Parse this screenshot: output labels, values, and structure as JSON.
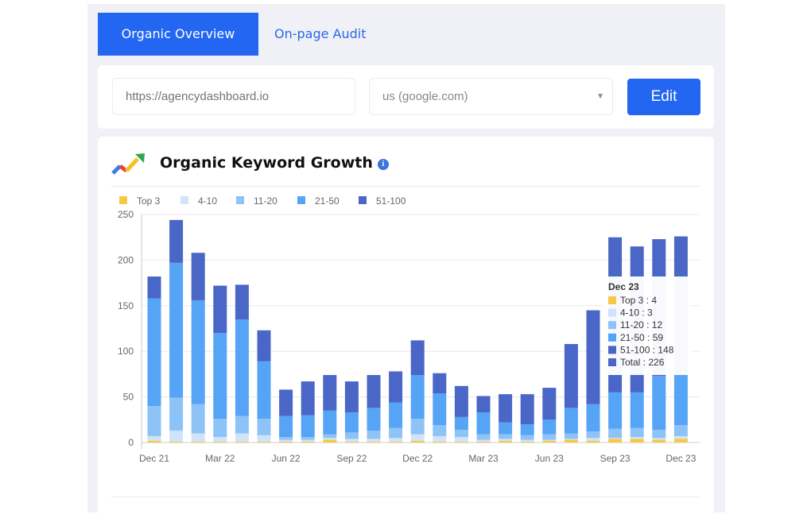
{
  "tabs": [
    {
      "label": "Organic Overview",
      "active": true
    },
    {
      "label": "On-page Audit",
      "active": false
    }
  ],
  "form": {
    "url_placeholder": "https://agencydashboard.io",
    "location": "us (google.com)",
    "edit_label": "Edit"
  },
  "widget": {
    "title": "Organic Keyword Growth",
    "info_icon": "i"
  },
  "colors": {
    "Top 3": "#f7c842",
    "4-10": "#cfe3fb",
    "11-20": "#8ec3f7",
    "21-50": "#55a4f5",
    "51-100": "#4a66c6"
  },
  "chart_data": {
    "type": "bar",
    "stacked": true,
    "title": "Organic Keyword Growth",
    "categories": [
      "Dec 21",
      "Jan 22",
      "Feb 22",
      "Mar 22",
      "Apr 22",
      "May 22",
      "Jun 22",
      "Jul 22",
      "Aug 22",
      "Sep 22",
      "Oct 22",
      "Nov 22",
      "Dec 22",
      "Jan 23",
      "Feb 23",
      "Mar 23",
      "Apr 23",
      "May 23",
      "Jun 23",
      "Jul 23",
      "Aug 23",
      "Sep 23",
      "Oct 23",
      "Nov 23",
      "Dec 23"
    ],
    "xtick_labels": [
      "Dec 21",
      "Mar 22",
      "Jun 22",
      "Sep 22",
      "Dec 22",
      "Mar 23",
      "Jun 23",
      "Sep 23",
      "Dec 23"
    ],
    "yticks": [
      "0",
      "50",
      "100",
      "150",
      "200",
      "250"
    ],
    "ylim": [
      0,
      250
    ],
    "legend_position": "top-left",
    "series": [
      {
        "name": "Top 3",
        "values": [
          2,
          1,
          1,
          1,
          1,
          1,
          1,
          1,
          3,
          1,
          1,
          1,
          2,
          1,
          1,
          1,
          2,
          1,
          2,
          3,
          2,
          4,
          4,
          3,
          4
        ]
      },
      {
        "name": "4-10",
        "values": [
          5,
          12,
          9,
          5,
          9,
          7,
          2,
          2,
          2,
          3,
          3,
          4,
          7,
          6,
          5,
          2,
          2,
          2,
          1,
          1,
          3,
          1,
          2,
          2,
          3
        ]
      },
      {
        "name": "11-20",
        "values": [
          33,
          36,
          32,
          20,
          19,
          18,
          3,
          3,
          4,
          7,
          9,
          11,
          17,
          12,
          8,
          6,
          5,
          5,
          6,
          6,
          7,
          10,
          10,
          9,
          12
        ]
      },
      {
        "name": "21-50",
        "values": [
          118,
          148,
          114,
          94,
          106,
          63,
          23,
          24,
          26,
          22,
          25,
          28,
          48,
          35,
          14,
          24,
          13,
          12,
          16,
          28,
          30,
          40,
          39,
          59,
          59
        ]
      },
      {
        "name": "51-100",
        "values": [
          24,
          47,
          52,
          52,
          38,
          34,
          29,
          37,
          39,
          34,
          36,
          34,
          38,
          22,
          34,
          18,
          31,
          33,
          35,
          70,
          103,
          170,
          160,
          150,
          148
        ]
      }
    ],
    "tooltip": {
      "title": "Dec 23",
      "rows": [
        {
          "label": "Top 3",
          "value": "4"
        },
        {
          "label": "4-10",
          "value": "3"
        },
        {
          "label": "11-20",
          "value": "12"
        },
        {
          "label": "21-50",
          "value": "59"
        },
        {
          "label": "51-100",
          "value": "148"
        },
        {
          "label": "Total",
          "value": "226"
        }
      ]
    }
  }
}
